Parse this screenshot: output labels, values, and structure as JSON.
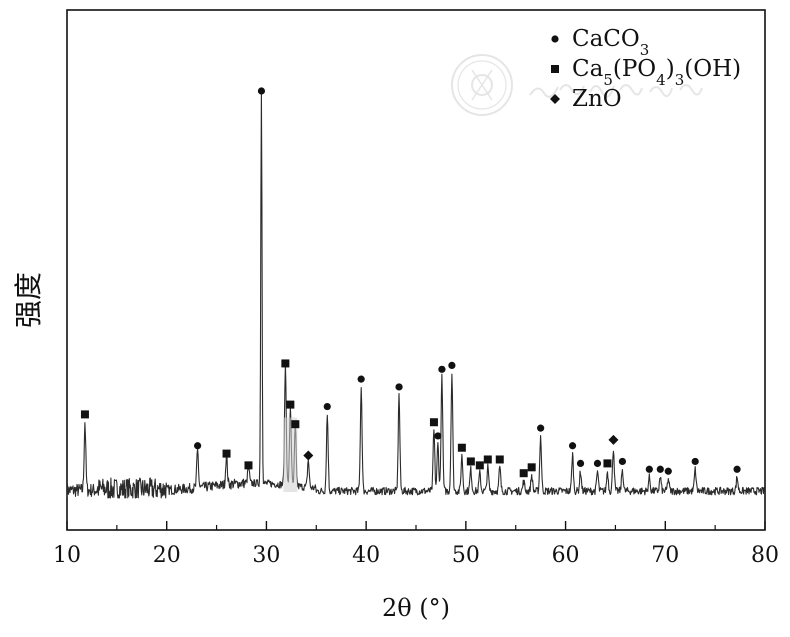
{
  "chart_data": {
    "type": "line",
    "title": "",
    "xlabel": "2θ (°)",
    "ylabel": "强度",
    "xlim": [
      10,
      80
    ],
    "ylim": [
      0,
      100
    ],
    "x_ticks": [
      10,
      20,
      30,
      40,
      50,
      60,
      70,
      80
    ],
    "x_tick_labels": [
      "10",
      "20",
      "30",
      "40",
      "50",
      "60",
      "70",
      "80"
    ],
    "grid": false,
    "legend_position": "top-right",
    "legend": [
      {
        "marker": "circle",
        "label_main": "CaCO",
        "label_sub": "3",
        "label_tail": ""
      },
      {
        "marker": "square",
        "label_parts": [
          {
            "t": "Ca",
            "sub": false
          },
          {
            "t": "5",
            "sub": true
          },
          {
            "t": "(PO",
            "sub": false
          },
          {
            "t": "4",
            "sub": true
          },
          {
            "t": ")",
            "sub": false
          },
          {
            "t": "3",
            "sub": true
          },
          {
            "t": "(OH)",
            "sub": false
          }
        ]
      },
      {
        "marker": "diamond",
        "label_main": "ZnO",
        "label_sub": "",
        "label_tail": ""
      }
    ],
    "peaks": [
      {
        "x": 11.8,
        "h": 17.5,
        "phase": "square"
      },
      {
        "x": 23.1,
        "h": 9.5,
        "phase": "circle"
      },
      {
        "x": 26.0,
        "h": 7.5,
        "phase": "square"
      },
      {
        "x": 28.2,
        "h": 4.5,
        "phase": "square"
      },
      {
        "x": 29.5,
        "h": 100,
        "phase": "circle"
      },
      {
        "x": 31.9,
        "h": 30.5,
        "phase": "square"
      },
      {
        "x": 32.4,
        "h": 20,
        "phase": "square"
      },
      {
        "x": 32.9,
        "h": 15,
        "phase": "square"
      },
      {
        "x": 34.2,
        "h": 7,
        "phase": "diamond"
      },
      {
        "x": 36.1,
        "h": 19.5,
        "phase": "circle"
      },
      {
        "x": 39.5,
        "h": 26.5,
        "phase": "circle"
      },
      {
        "x": 43.3,
        "h": 24.5,
        "phase": "circle"
      },
      {
        "x": 46.8,
        "h": 15.5,
        "phase": "square"
      },
      {
        "x": 47.2,
        "h": 12,
        "phase": "circle"
      },
      {
        "x": 47.6,
        "h": 29,
        "phase": "circle"
      },
      {
        "x": 48.6,
        "h": 30,
        "phase": "circle"
      },
      {
        "x": 49.6,
        "h": 9,
        "phase": "square"
      },
      {
        "x": 50.5,
        "h": 5.5,
        "phase": "square"
      },
      {
        "x": 51.4,
        "h": 4.5,
        "phase": "square"
      },
      {
        "x": 52.2,
        "h": 6,
        "phase": "square"
      },
      {
        "x": 53.4,
        "h": 6,
        "phase": "square"
      },
      {
        "x": 55.8,
        "h": 2.5,
        "phase": "square"
      },
      {
        "x": 56.6,
        "h": 4,
        "phase": "square"
      },
      {
        "x": 57.5,
        "h": 14,
        "phase": "circle"
      },
      {
        "x": 60.7,
        "h": 9.5,
        "phase": "circle"
      },
      {
        "x": 61.5,
        "h": 5,
        "phase": "circle"
      },
      {
        "x": 63.2,
        "h": 5,
        "phase": "circle"
      },
      {
        "x": 64.2,
        "h": 5,
        "phase": "square"
      },
      {
        "x": 64.8,
        "h": 11,
        "phase": "diamond"
      },
      {
        "x": 65.7,
        "h": 5.5,
        "phase": "circle"
      },
      {
        "x": 68.4,
        "h": 3.5,
        "phase": "circle"
      },
      {
        "x": 69.5,
        "h": 3.5,
        "phase": "circle"
      },
      {
        "x": 70.3,
        "h": 3,
        "phase": "circle"
      },
      {
        "x": 73.0,
        "h": 5.5,
        "phase": "circle"
      },
      {
        "x": 77.2,
        "h": 3.5,
        "phase": "circle"
      }
    ]
  }
}
